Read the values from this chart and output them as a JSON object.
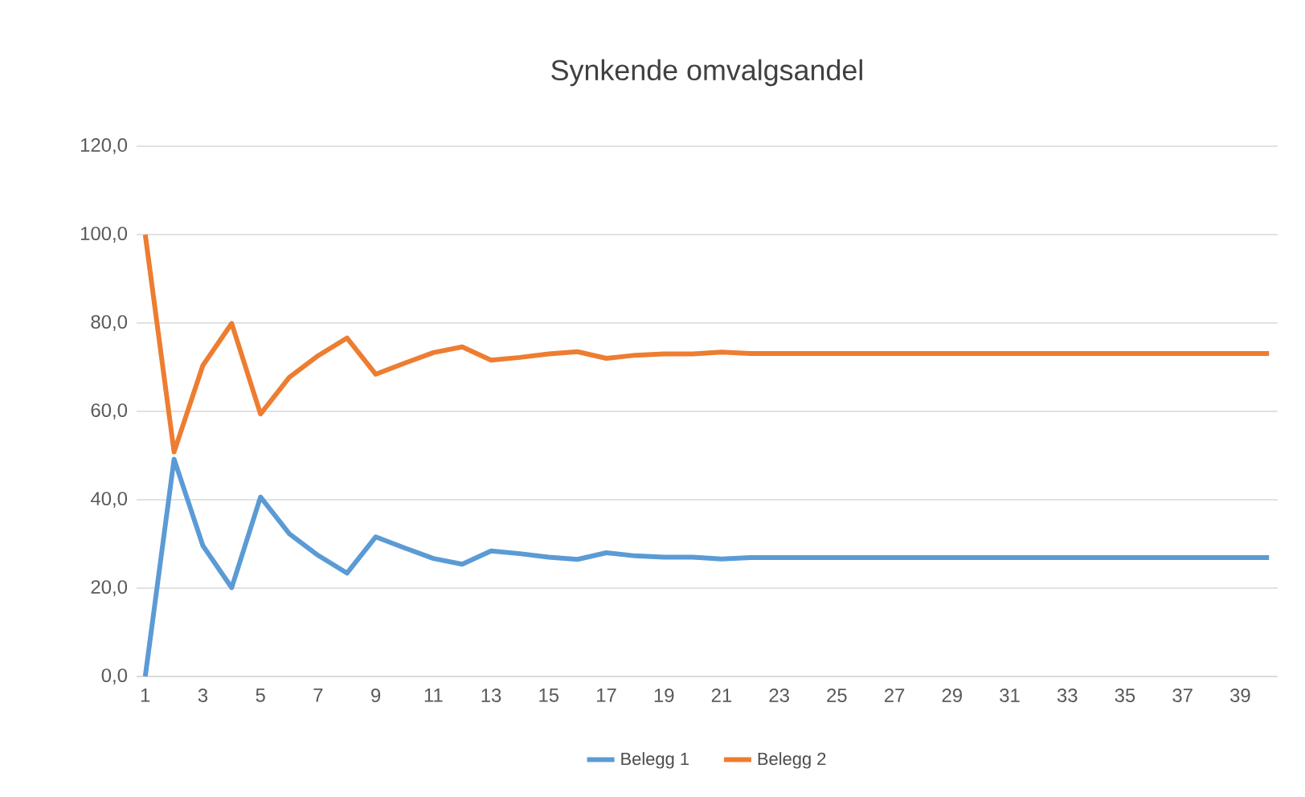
{
  "chart_data": {
    "type": "line",
    "title": "Synkende omvalgsandel",
    "categories": [
      "1",
      null,
      "3",
      null,
      "5",
      null,
      "7",
      null,
      "9",
      null,
      "11",
      null,
      "13",
      null,
      "15",
      null,
      "17",
      null,
      "19",
      null,
      "21",
      null,
      "23",
      null,
      "25",
      null,
      "27",
      null,
      "29",
      null,
      "31",
      null,
      "33",
      null,
      "35",
      null,
      "37",
      null,
      "39",
      null
    ],
    "series": [
      {
        "name": "Belegg 1",
        "color": "#5b9bd5",
        "values": [
          0,
          49.2,
          29.6,
          20.1,
          40.6,
          32.3,
          27.4,
          23.4,
          31.6,
          29.1,
          26.7,
          25.4,
          28.4,
          27.8,
          27.0,
          26.5,
          28.0,
          27.3,
          27.0,
          27.0,
          26.6,
          26.9,
          26.9,
          26.9,
          26.9,
          26.9,
          26.9,
          26.9,
          26.9,
          26.9,
          26.9,
          26.9,
          26.9,
          26.9,
          26.9,
          26.9,
          26.9,
          26.9,
          26.9,
          26.9
        ]
      },
      {
        "name": "Belegg 2",
        "color": "#ed7d31",
        "values": [
          100,
          50.8,
          70.4,
          79.9,
          59.4,
          67.7,
          72.6,
          76.6,
          68.4,
          70.9,
          73.3,
          74.6,
          71.6,
          72.2,
          73.0,
          73.5,
          72.0,
          72.7,
          73.0,
          73.0,
          73.4,
          73.1,
          73.1,
          73.1,
          73.1,
          73.1,
          73.1,
          73.1,
          73.1,
          73.1,
          73.1,
          73.1,
          73.1,
          73.1,
          73.1,
          73.1,
          73.1,
          73.1,
          73.1,
          73.1
        ]
      }
    ],
    "ylim": [
      0,
      120
    ],
    "yticks": [
      {
        "value": 0,
        "label": "0,0"
      },
      {
        "value": 20,
        "label": "20,0"
      },
      {
        "value": 40,
        "label": "40,0"
      },
      {
        "value": 60,
        "label": "60,0"
      },
      {
        "value": 80,
        "label": "80,0"
      },
      {
        "value": 100,
        "label": "100,0"
      },
      {
        "value": 120,
        "label": "120,0"
      }
    ],
    "grid": "y",
    "legend": "bottom",
    "marker": "none",
    "line_style": "solid"
  }
}
